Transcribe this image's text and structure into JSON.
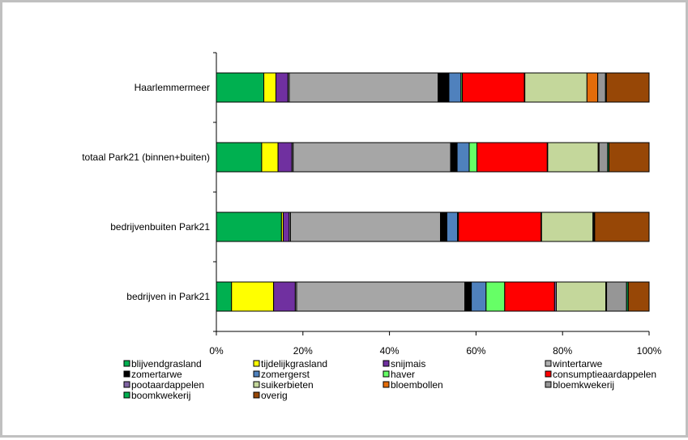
{
  "chart_data": {
    "type": "bar",
    "orientation": "horizontal",
    "stacked": "percent",
    "title": "",
    "xlabel": "",
    "ylabel": "",
    "xlim": [
      0,
      100
    ],
    "x_ticks": [
      "0%",
      "20%",
      "40%",
      "60%",
      "80%",
      "100%"
    ],
    "grid": false,
    "legend_position": "bottom",
    "categories": [
      "Haarlemmermeer",
      "totaal Park21 (binnen+buiten)",
      "bedrijvenbuiten Park21",
      "bedrijven in Park21"
    ],
    "series": [
      {
        "name": "blijvendgrasland",
        "color": "#00b050",
        "values": [
          11.0,
          10.5,
          15.2,
          3.5
        ]
      },
      {
        "name": "tijdelijkgrasland",
        "color": "#ffff00",
        "values": [
          2.8,
          3.8,
          0.4,
          9.7
        ]
      },
      {
        "name": "snijmais",
        "color": "#7030a0",
        "values": [
          2.8,
          3.2,
          1.4,
          5.0
        ]
      },
      {
        "name": "wintertarwe",
        "color": "#b0b0b0",
        "values": [
          0.3,
          0.3,
          0.3,
          0.3
        ]
      },
      {
        "name": "bloemkwekerij_1",
        "color": "#a6a6a6",
        "values": [
          34.5,
          36.5,
          35.0,
          38.8
        ]
      },
      {
        "name": "zomertarwe",
        "color": "#000000",
        "values": [
          2.5,
          1.5,
          1.5,
          1.5
        ]
      },
      {
        "name": "zomergerst",
        "color": "#4f81bd",
        "values": [
          2.8,
          2.8,
          2.5,
          3.4
        ]
      },
      {
        "name": "haver",
        "color": "#66ff66",
        "values": [
          0.3,
          1.8,
          0.2,
          4.3
        ]
      },
      {
        "name": "consumptieaardappelen",
        "color": "#ff0000",
        "values": [
          14.4,
          16.3,
          19.3,
          11.5
        ]
      },
      {
        "name": "pootaardappelen",
        "color": "#8064a2",
        "values": [
          0.1,
          0.1,
          0.1,
          0.4
        ]
      },
      {
        "name": "suikerbieten",
        "color": "#c4d79b",
        "values": [
          14.4,
          11.7,
          12.0,
          11.4
        ]
      },
      {
        "name": "bloembollen",
        "color": "#e46c0a",
        "values": [
          2.5,
          0.2,
          0.1,
          0.2
        ]
      },
      {
        "name": "bloemkwekerij",
        "color": "#969696",
        "values": [
          1.8,
          2.0,
          0.2,
          4.6
        ]
      },
      {
        "name": "boomkwekerij",
        "color": "#00b050",
        "values": [
          0.2,
          0.3,
          0.1,
          0.4
        ]
      },
      {
        "name": "overig",
        "color": "#974706",
        "values": [
          9.9,
          9.3,
          12.7,
          4.8
        ]
      }
    ],
    "legend": [
      {
        "label": "blijvendgrasland",
        "color": "#00b050"
      },
      {
        "label": "tijdelijkgrasland",
        "color": "#ffff00"
      },
      {
        "label": "snijmais",
        "color": "#7030a0"
      },
      {
        "label": "wintertarwe",
        "color": "#b0b0b0"
      },
      {
        "label": "zomertarwe",
        "color": "#000000"
      },
      {
        "label": "zomergerst",
        "color": "#4f81bd"
      },
      {
        "label": "haver",
        "color": "#66ff66"
      },
      {
        "label": "consumptieaardappelen",
        "color": "#ff0000"
      },
      {
        "label": "pootaardappelen",
        "color": "#8064a2"
      },
      {
        "label": "suikerbieten",
        "color": "#c4d79b"
      },
      {
        "label": "bloembollen",
        "color": "#e46c0a"
      },
      {
        "label": "bloemkwekerij",
        "color": "#969696"
      },
      {
        "label": "boomkwekerij",
        "color": "#00b050"
      },
      {
        "label": "overig",
        "color": "#974706"
      }
    ]
  }
}
